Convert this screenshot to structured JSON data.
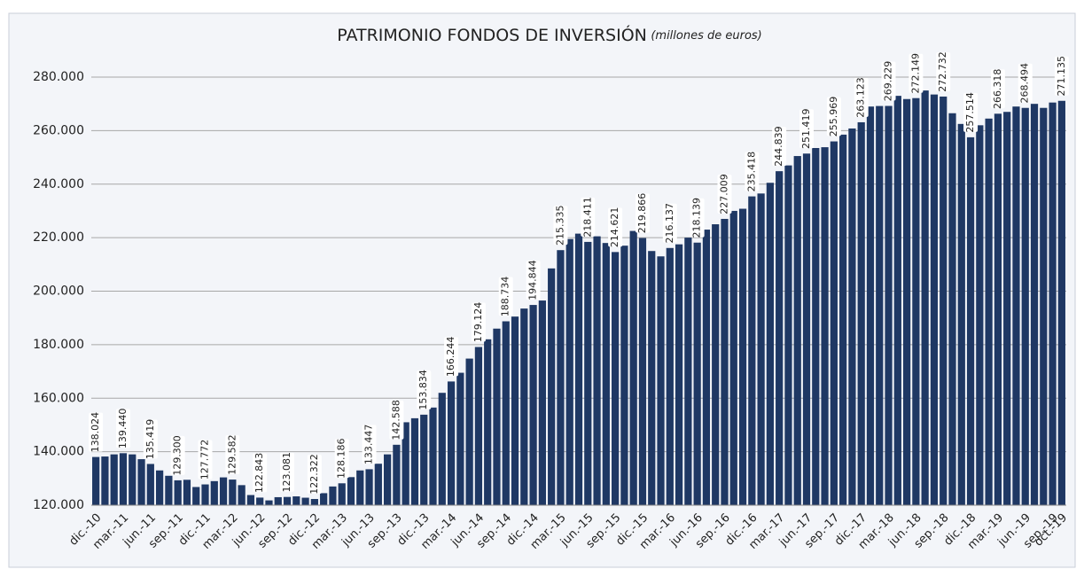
{
  "chart_data": {
    "type": "bar",
    "title": "PATRIMONIO FONDOS DE INVERSIÓN",
    "subtitle": "(millones de euros)",
    "color": "#1f3864",
    "grid": true,
    "ylim": [
      120000,
      280000
    ],
    "yticks": [
      {
        "value": 120000,
        "label": "120.000"
      },
      {
        "value": 140000,
        "label": "140.000"
      },
      {
        "value": 160000,
        "label": "160.000"
      },
      {
        "value": 180000,
        "label": "180.000"
      },
      {
        "value": 200000,
        "label": "200.000"
      },
      {
        "value": 220000,
        "label": "220.000"
      },
      {
        "value": 240000,
        "label": "240.000"
      },
      {
        "value": 260000,
        "label": "260.000"
      },
      {
        "value": 280000,
        "label": "280.000"
      }
    ],
    "categories": [
      "dic.-10",
      null,
      null,
      "mar.-11",
      null,
      null,
      "jun.-11",
      null,
      null,
      "sep.-11",
      null,
      null,
      "dic.-11",
      null,
      null,
      "mar.-12",
      null,
      null,
      "jun.-12",
      null,
      null,
      "sep.-12",
      null,
      null,
      "dic.-12",
      null,
      null,
      "mar.-13",
      null,
      null,
      "jun.-13",
      null,
      null,
      "sep.-13",
      null,
      null,
      "dic.-13",
      null,
      null,
      "mar.-14",
      null,
      null,
      "jun.-14",
      null,
      null,
      "sep.-14",
      null,
      null,
      "dic.-14",
      null,
      null,
      "mar.-15",
      null,
      null,
      "jun.-15",
      null,
      null,
      "sep.-15",
      null,
      null,
      "dic.-15",
      null,
      null,
      "mar.-16",
      null,
      null,
      "jun.-16",
      null,
      null,
      "sep.-16",
      null,
      null,
      "dic.-16",
      null,
      null,
      "mar.-17",
      null,
      null,
      "jun.-17",
      null,
      null,
      "sep.-17",
      null,
      null,
      "dic.-17",
      null,
      null,
      "mar.-18",
      null,
      null,
      "jun.-18",
      null,
      null,
      "sep.-18",
      null,
      null,
      "dic.-18",
      null,
      null,
      "mar.-19",
      null,
      null,
      "jun.-19",
      null,
      null,
      "sep.-19",
      "oct.-19"
    ],
    "values": [
      138024,
      138200,
      139000,
      139440,
      139000,
      137200,
      135419,
      133000,
      131000,
      129300,
      129500,
      126800,
      127772,
      129000,
      130400,
      129582,
      127500,
      123800,
      122843,
      121800,
      123000,
      123081,
      123300,
      122800,
      122322,
      124500,
      127000,
      128186,
      130500,
      133000,
      133447,
      135500,
      139000,
      142588,
      151000,
      152500,
      153834,
      156500,
      162000,
      166244,
      169500,
      174800,
      179124,
      182000,
      186000,
      188734,
      190500,
      193500,
      194844,
      196500,
      208500,
      215335,
      219500,
      221500,
      218411,
      220500,
      218000,
      214621,
      217000,
      222500,
      219866,
      215000,
      213000,
      216137,
      217500,
      220000,
      218139,
      223000,
      225000,
      227009,
      230000,
      230800,
      235418,
      236500,
      240500,
      244839,
      247000,
      250500,
      251419,
      253500,
      253800,
      255969,
      258500,
      260800,
      263123,
      269000,
      269200,
      269229,
      273000,
      271800,
      272149,
      275000,
      273500,
      272732,
      266500,
      262500,
      257514,
      262000,
      264500,
      266318,
      267000,
      269000,
      268494,
      270000,
      268500,
      270500,
      271135
    ],
    "value_labels": [
      "138.024",
      null,
      null,
      "139.440",
      null,
      null,
      "135.419",
      null,
      null,
      "129.300",
      null,
      null,
      "127.772",
      null,
      null,
      "129.582",
      null,
      null,
      "122.843",
      null,
      null,
      "123.081",
      null,
      null,
      "122.322",
      null,
      null,
      "128.186",
      null,
      null,
      "133.447",
      null,
      null,
      "142.588",
      null,
      null,
      "153.834",
      null,
      null,
      "166.244",
      null,
      null,
      "179.124",
      null,
      null,
      "188.734",
      null,
      null,
      "194.844",
      null,
      null,
      "215.335",
      null,
      null,
      "218.411",
      null,
      null,
      "214.621",
      null,
      null,
      "219.866",
      null,
      null,
      "216.137",
      null,
      null,
      "218.139",
      null,
      null,
      "227.009",
      null,
      null,
      "235.418",
      null,
      null,
      "244.839",
      null,
      null,
      "251.419",
      null,
      null,
      "255.969",
      null,
      null,
      "263.123",
      null,
      null,
      "269.229",
      null,
      null,
      "272.149",
      null,
      null,
      "272.732",
      null,
      null,
      "257.514",
      null,
      null,
      "266.318",
      null,
      null,
      "268.494",
      null,
      null,
      null,
      "271.135"
    ]
  }
}
